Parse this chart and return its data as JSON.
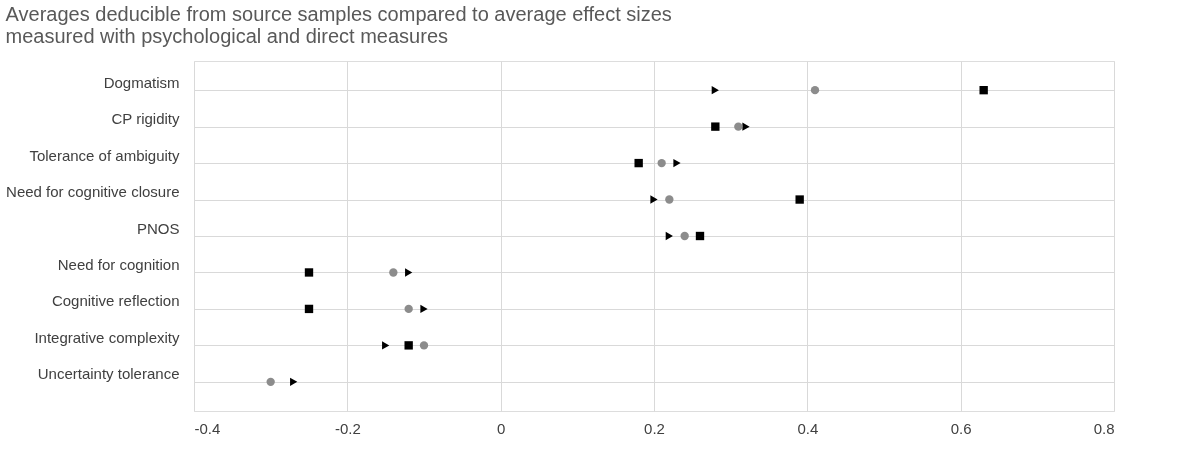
{
  "chart_data": {
    "type": "scatter",
    "title": "Averages deducible from source samples compared to average effect sizes\nmeasured with psychological and direct measures",
    "categories": [
      "Dogmatism",
      "CP rigidity",
      "Tolerance of ambiguity",
      "Need for cognitive closure",
      "PNOS",
      "Need for cognition",
      "Cognitive reflection",
      "Integrative complexity",
      "Uncertainty tolerance"
    ],
    "orientation": "horizontal",
    "series": [
      {
        "color": "#000000",
        "marker": "triangle",
        "values": [
          0.28,
          0.32,
          0.23,
          0.2,
          0.22,
          -0.12,
          -0.1,
          -0.15,
          -0.27
        ]
      },
      {
        "color": "#8c8c8c",
        "marker": "circle",
        "values": [
          0.41,
          0.31,
          0.21,
          0.22,
          0.24,
          -0.14,
          -0.12,
          -0.1,
          -0.3
        ]
      },
      {
        "color": "#000000",
        "marker": "square",
        "values": [
          0.63,
          0.28,
          0.18,
          0.39,
          0.26,
          -0.25,
          -0.25,
          -0.12,
          null
        ]
      }
    ],
    "xlim": [
      -0.4,
      0.8
    ],
    "xticks": [
      -0.4,
      -0.2,
      0,
      0.2,
      0.4,
      0.6,
      0.8
    ],
    "grid": true,
    "legend": false
  }
}
